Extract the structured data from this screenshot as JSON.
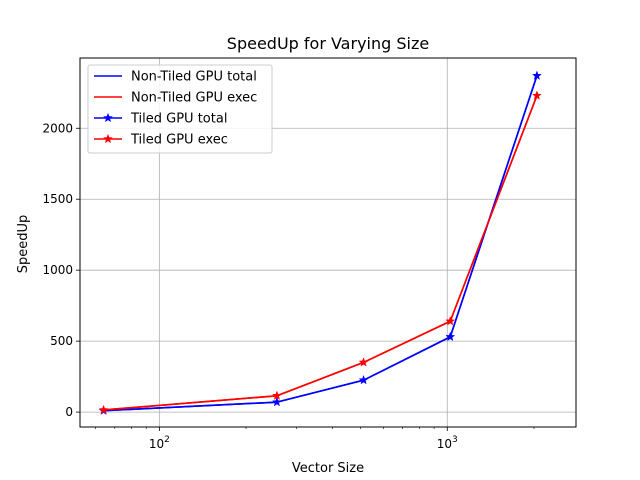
{
  "chart_data": {
    "type": "line",
    "title": "SpeedUp for Varying Size",
    "xlabel": "Vector Size",
    "ylabel": "SpeedUp",
    "xscale": "log",
    "xlim": [
      53,
      2800
    ],
    "ylim": [
      -105,
      2495
    ],
    "grid": true,
    "legend_position": "top-left",
    "x": [
      64,
      256,
      512,
      1024,
      2048
    ],
    "x_ticks": [
      {
        "value": 100,
        "base": "10",
        "exp": "2"
      },
      {
        "value": 1000,
        "base": "10",
        "exp": "3"
      }
    ],
    "y_ticks": [
      0,
      500,
      1000,
      1500,
      2000
    ],
    "series": [
      {
        "name": "Non-Tiled GPU total",
        "color": "#0000ff",
        "marker": "none",
        "values": [
          10,
          70,
          225,
          530,
          2370
        ]
      },
      {
        "name": "Non-Tiled GPU exec",
        "color": "#ff0000",
        "marker": "none",
        "values": [
          15,
          115,
          350,
          640,
          2230
        ]
      },
      {
        "name": "Tiled GPU total",
        "color": "#0000ff",
        "marker": "star",
        "values": [
          10,
          70,
          225,
          530,
          2370
        ]
      },
      {
        "name": "Tiled GPU exec",
        "color": "#ff0000",
        "marker": "star",
        "values": [
          15,
          115,
          350,
          640,
          2230
        ]
      }
    ]
  }
}
